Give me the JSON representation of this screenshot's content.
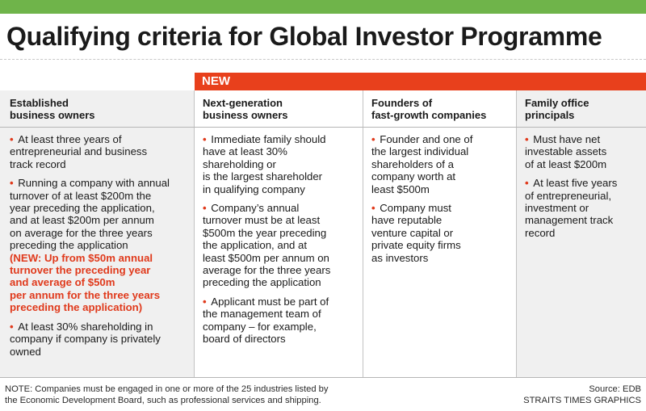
{
  "colors": {
    "top_bar": "#6fb44a",
    "new_band": "#e8401c",
    "highlight": "#e03a1c",
    "shaded_column": "#f0f0f0"
  },
  "title": "Qualifying criteria for Global Investor Programme",
  "new_label": "NEW",
  "bullet_glyph": "•",
  "columns": [
    {
      "header": [
        "Established",
        "business owners"
      ],
      "bullets": [
        {
          "lines": [
            "At least three years of",
            "entrepreneurial and business",
            "track record"
          ]
        },
        {
          "lines": [
            "Running a company with annual",
            "turnover of at least $200m the",
            "year preceding the application,",
            "and at least $200m per annum",
            "on average for the three years",
            "preceding the application"
          ],
          "highlight": [
            "(NEW: Up from $50m annual",
            "turnover the preceding year",
            "and average of $50m",
            "per annum for the three years",
            "preceding the application)"
          ]
        },
        {
          "lines": [
            "At least 30% shareholding in",
            "company if company is privately",
            "owned"
          ]
        }
      ]
    },
    {
      "header": [
        "Next-generation",
        "business owners"
      ],
      "bullets": [
        {
          "lines": [
            "Immediate family should",
            "have at least 30%",
            "shareholding or",
            "is the largest shareholder",
            "in qualifying company"
          ]
        },
        {
          "lines": [
            "Company’s annual",
            "turnover must be at least",
            "$500m the year preceding",
            "the application, and at",
            "least $500m per annum on",
            "average for the three years",
            "preceding the application"
          ]
        },
        {
          "lines": [
            "Applicant must be part of",
            "the management team of",
            "company – for example,",
            "board of directors"
          ]
        }
      ]
    },
    {
      "header": [
        "Founders of",
        "fast-growth companies"
      ],
      "bullets": [
        {
          "lines": [
            "Founder and one of",
            "the largest individual",
            "shareholders of a",
            "company worth at",
            "least $500m"
          ]
        },
        {
          "lines": [
            "Company must",
            "have reputable",
            "venture capital or",
            "private equity firms",
            "as investors"
          ]
        }
      ]
    },
    {
      "header": [
        "Family office",
        "principals"
      ],
      "bullets": [
        {
          "lines": [
            "Must have net",
            "investable assets",
            "of at least $200m"
          ]
        },
        {
          "lines": [
            "At least five years",
            "of entrepreneurial,",
            "investment or",
            "management track",
            "record"
          ]
        }
      ]
    }
  ],
  "note_lines": [
    "NOTE: Companies must be engaged in one or more of the 25 industries listed by",
    "the Economic Development Board, such as professional services and shipping."
  ],
  "source": "Source: EDB",
  "credit": "STRAITS TIMES GRAPHICS"
}
